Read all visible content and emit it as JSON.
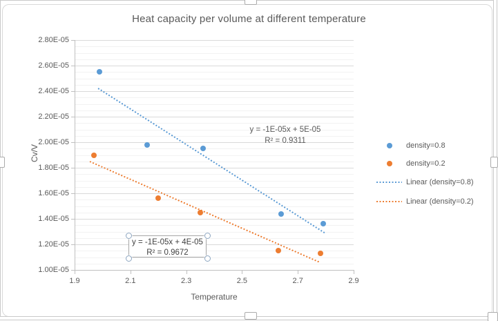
{
  "chart_data": {
    "type": "scatter",
    "title": "Heat capacity per volume at different temperature",
    "xlabel": "Temperature",
    "ylabel": "Cv/V",
    "xlim": [
      1.9,
      2.9
    ],
    "ylim": [
      1e-05,
      2.8e-05
    ],
    "x_tick_labels": [
      "1.9",
      "2.1",
      "2.3",
      "2.5",
      "2.7",
      "2.9"
    ],
    "y_tick_labels": [
      "2.80E-05",
      "2.60E-05",
      "2.40E-05",
      "2.20E-05",
      "2.00E-05",
      "1.80E-05",
      "1.60E-05",
      "1.40E-05",
      "1.20E-05",
      "1.00E-05"
    ],
    "y_major_unit": 2e-06,
    "y_minor_unit": 5e-07,
    "grid": "horizontal major and minor, no vertical gridlines",
    "legend_position": "right",
    "series": [
      {
        "name": "density=0.8",
        "color": "#5B9BD5",
        "points": [
          [
            1.99,
            2.55e-05
          ],
          [
            2.16,
            1.98e-05
          ],
          [
            2.36,
            1.95e-05
          ],
          [
            2.64,
            1.44e-05
          ],
          [
            2.79,
            1.36e-05
          ]
        ]
      },
      {
        "name": "density=0.2",
        "color": "#ED7D31",
        "points": [
          [
            1.97,
            1.9e-05
          ],
          [
            2.2,
            1.56e-05
          ],
          [
            2.35,
            1.45e-05
          ],
          [
            2.63,
            1.15e-05
          ],
          [
            2.78,
            1.13e-05
          ]
        ]
      }
    ],
    "trendlines": [
      {
        "name": "Linear (density=0.8)",
        "color": "#5B9BD5",
        "start": [
          1.985,
          2.42e-05
        ],
        "end": [
          2.796,
          1.29e-05
        ]
      },
      {
        "name": "Linear (density=0.2)",
        "color": "#ED7D31",
        "start": [
          1.955,
          1.85e-05
        ],
        "end": [
          2.78,
          1.06e-05
        ]
      }
    ]
  },
  "annotations": {
    "trend1": {
      "line1": "y = -1E-05x + 5E-05",
      "line2": "R² = 0.9311"
    },
    "trend2": {
      "line1": "y = -1E-05x + 4E-05",
      "line2": "R² = 0.9672"
    }
  },
  "legend": {
    "items": [
      {
        "label": "density=0.8",
        "sample": "dot",
        "color": "#5B9BD5"
      },
      {
        "label": "density=0.2",
        "sample": "dot",
        "color": "#ED7D31"
      },
      {
        "label": "Linear (density=0.8)",
        "sample": "dotted-line",
        "color": "#5B9BD5"
      },
      {
        "label": "Linear (density=0.2)",
        "sample": "dotted-line",
        "color": "#ED7D31"
      }
    ]
  },
  "colors": {
    "blue": "#5B9BD5",
    "orange": "#ED7D31",
    "text": "#595959",
    "grid_major": "#D9D9D9",
    "grid_minor": "#F2F2F2",
    "axis_line": "#BFBFBF"
  }
}
